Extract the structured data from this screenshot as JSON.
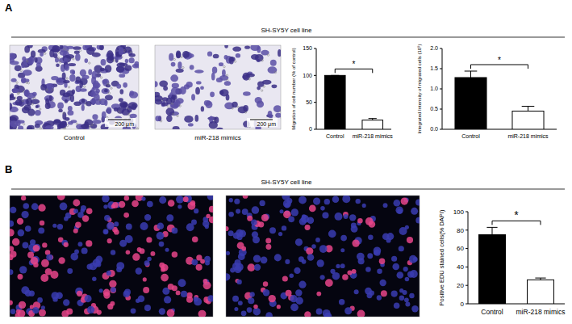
{
  "chart_data": [
    {
      "type": "bar",
      "y_label": "Migration of  cell number (% of control)",
      "categories": [
        "Control",
        "miR-218 mimics"
      ],
      "values": [
        100,
        17
      ],
      "errors": [
        0,
        3
      ],
      "colors": [
        "#000000",
        "#ffffff"
      ],
      "ylim": [
        0,
        150
      ],
      "yticks": [
        0,
        50,
        100,
        150
      ],
      "annotation": "*"
    },
    {
      "type": "bar",
      "y_label": "Integrated Intensity of migrated cells (10⁵)",
      "categories": [
        "Control",
        "miR-218 mimics"
      ],
      "values": [
        1.28,
        0.45
      ],
      "errors": [
        0.16,
        0.12
      ],
      "colors": [
        "#000000",
        "#ffffff"
      ],
      "ylim": [
        0,
        2
      ],
      "yticks": [
        {
          "value": 0,
          "label": "0.0"
        },
        0.5,
        {
          "value": 1,
          "label": "1.0"
        },
        1.5,
        {
          "value": 2,
          "label": "2.0"
        }
      ],
      "annotation": "*"
    },
    {
      "type": "bar",
      "y_label": "Positive EDU stained cells(% DAPI)",
      "categories": [
        "Control",
        "miR-218 mimics"
      ],
      "values": [
        75,
        26
      ],
      "errors": [
        8,
        2
      ],
      "colors": [
        "#000000",
        "#ffffff"
      ],
      "ylim": [
        0,
        100
      ],
      "yticks": [
        0,
        20,
        40,
        60,
        80,
        100
      ],
      "annotation": "*"
    }
  ],
  "panels": [
    {
      "letter": "A",
      "header": "SH-SY5Y cell line",
      "images": [
        {
          "caption": "Control",
          "scale_bar": "200 μm"
        },
        {
          "caption": "miR-218 mimics",
          "scale_bar": "200 μm"
        }
      ]
    },
    {
      "letter": "B",
      "header": "SH-SY5Y cell line"
    }
  ]
}
